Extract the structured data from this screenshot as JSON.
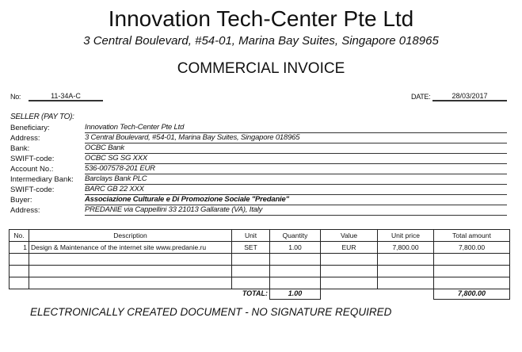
{
  "header": {
    "company": "Innovation Tech-Center Pte Ltd",
    "address": "3 Central Boulevard, #54-01, Marina Bay Suites, Singapore 018965",
    "doc_title": "COMMERCIAL INVOICE"
  },
  "meta": {
    "no_label": "No:",
    "no_value": "11-34A-C",
    "date_label": "DATE:",
    "date_value": "28/03/2017"
  },
  "seller": {
    "heading": "SELLER (PAY TO):",
    "fields": [
      {
        "label": "Beneficiary:",
        "value": "Innovation Tech-Center Pte Ltd"
      },
      {
        "label": "Address:",
        "value": "3 Central Boulevard, #54-01, Marina Bay Suites, Singapore 018965"
      },
      {
        "label": "Bank:",
        "value": "OCBC Bank"
      },
      {
        "label": "SWIFT-code:",
        "value": "OCBC SG SG XXX"
      },
      {
        "label": "Account No.:",
        "value": "536-007578-201 EUR"
      },
      {
        "label": "Intermediary Bank:",
        "value": "Barclays Bank PLC"
      },
      {
        "label": "SWIFT-code:",
        "value": "BARC GB 22 XXX"
      },
      {
        "label": "Buyer:",
        "value": "Associazione Culturale e Di Promozione Sociale \"Predanie\""
      },
      {
        "label": "Address:",
        "value": "PREDANIE via Cappellini 33 21013 Gallarate (VA), Italy"
      }
    ]
  },
  "table": {
    "headers": [
      "No.",
      "Description",
      "Unit",
      "Quantity",
      "Value",
      "Unit price",
      "Total amount"
    ],
    "rows": [
      [
        "1",
        "Design & Maintenance of the internet site www.predanie.ru",
        "SET",
        "1.00",
        "EUR",
        "7,800.00",
        "7,800.00"
      ]
    ],
    "total_label": "TOTAL:",
    "total_quantity": "1.00",
    "total_amount": "7,800.00"
  },
  "footer": "ELECTRONICALLY CREATED DOCUMENT - NO SIGNATURE REQUIRED"
}
